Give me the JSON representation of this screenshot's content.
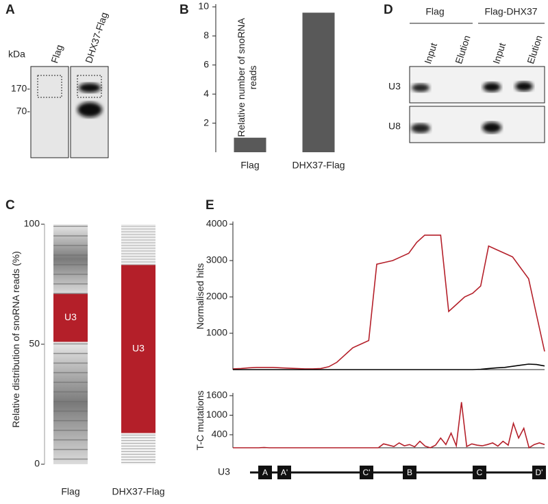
{
  "panel_letters": [
    "A",
    "B",
    "C",
    "D",
    "E"
  ],
  "panel_a": {
    "unit": "kDa",
    "lanes": [
      "Flag",
      "DHX37-Flag"
    ],
    "markers": [
      "170-",
      "70-"
    ]
  },
  "panel_d": {
    "groups": [
      "Flag",
      "Flag-DHX37"
    ],
    "lanes": [
      "Input",
      "Elution",
      "Input",
      "Elution"
    ],
    "rows": [
      "U3",
      "U8"
    ]
  },
  "u3_map": {
    "label": "U3",
    "boxes": [
      "A",
      "A'",
      "C'",
      "B",
      "C",
      "D'"
    ]
  },
  "chart_data": [
    {
      "type": "bar",
      "ylabel": "Relative number of snoRNA reads",
      "categories": [
        "Flag",
        "DHX37-Flag"
      ],
      "values": [
        1,
        9.6
      ],
      "color": "#595959",
      "ylim": [
        0,
        10
      ],
      "yticks": [
        2,
        4,
        6,
        8,
        10
      ]
    },
    {
      "type": "stacked-bar",
      "ylabel": "Relative distribution of snoRNA reads (%)",
      "categories": [
        "Flag",
        "DHX37-Flag"
      ],
      "series": [
        {
          "color": "#6e6e6e",
          "values": [
            51,
            13
          ]
        },
        {
          "name": "U3",
          "color": "#b41f29",
          "values": [
            20,
            70
          ]
        },
        {
          "color": "#6e6e6e",
          "values": [
            29,
            17
          ]
        }
      ],
      "ylim": [
        0,
        100
      ],
      "yticks": [
        0,
        50,
        100
      ]
    },
    {
      "type": "line",
      "ylabel": "Normalised hits",
      "ylim": [
        0,
        4000
      ],
      "yticks": [
        1000,
        2000,
        3000,
        4000
      ],
      "series": [
        {
          "color": "#b41f29",
          "values": [
            20,
            30,
            50,
            60,
            60,
            60,
            50,
            40,
            30,
            20,
            20,
            30,
            80,
            200,
            400,
            600,
            700,
            800,
            2900,
            2950,
            3000,
            3100,
            3200,
            3500,
            3700,
            3700,
            3700,
            1600,
            1800,
            2000,
            2100,
            2300,
            3400,
            3300,
            3200,
            3100,
            2800,
            2500,
            1500,
            500
          ]
        },
        {
          "color": "#000000",
          "values": [
            0,
            0,
            0,
            0,
            0,
            0,
            0,
            0,
            0,
            0,
            0,
            0,
            0,
            0,
            0,
            0,
            0,
            0,
            0,
            0,
            0,
            0,
            0,
            0,
            0,
            0,
            0,
            0,
            0,
            0,
            0,
            10,
            30,
            50,
            60,
            90,
            120,
            150,
            140,
            100
          ]
        }
      ]
    },
    {
      "type": "line",
      "ylabel": "T-C mutations",
      "ylim": [
        0,
        1600
      ],
      "yticks": [
        400,
        1000,
        1600
      ],
      "series": [
        {
          "color": "#b41f29",
          "values": [
            0,
            0,
            0,
            0,
            0,
            0,
            10,
            0,
            0,
            0,
            0,
            0,
            0,
            0,
            0,
            0,
            0,
            0,
            0,
            0,
            0,
            0,
            0,
            0,
            0,
            0,
            0,
            0,
            0,
            120,
            80,
            40,
            150,
            60,
            100,
            30,
            200,
            50,
            0,
            80,
            300,
            100,
            450,
            60,
            1400,
            40,
            120,
            80,
            60,
            100,
            150,
            50,
            200,
            80,
            750,
            300,
            600,
            0,
            100,
            150,
            100
          ]
        }
      ]
    }
  ]
}
